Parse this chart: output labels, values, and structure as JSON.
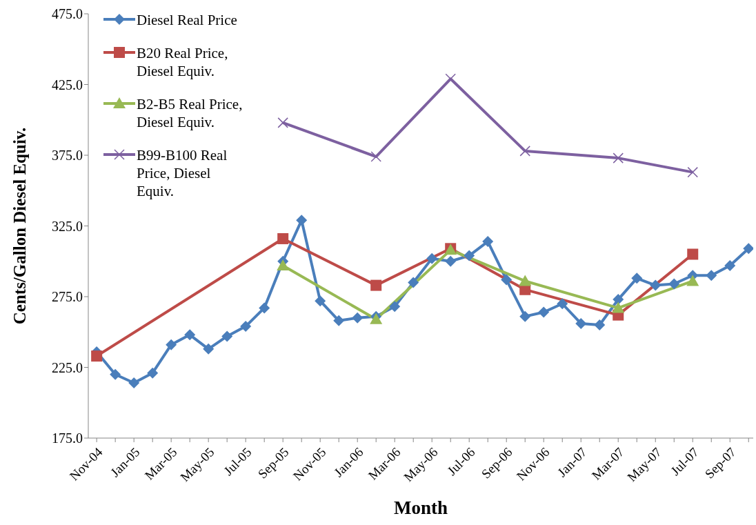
{
  "chart_data": {
    "type": "line",
    "xlabel": "Month",
    "ylabel": "Cents/Gallon Diesel Equiv.",
    "categories": [
      "Nov-04",
      null,
      "Jan-05",
      null,
      "Mar-05",
      null,
      "May-05",
      null,
      "Jul-05",
      null,
      "Sep-05",
      null,
      "Nov-05",
      null,
      "Jan-06",
      null,
      "Mar-06",
      null,
      "May-06",
      null,
      "Jul-06",
      null,
      "Sep-06",
      null,
      "Nov-06",
      null,
      "Jan-07",
      null,
      "Mar-07",
      null,
      "May-07",
      null,
      "Jul-07",
      null,
      "Sep-07",
      null
    ],
    "ylim": [
      175,
      475
    ],
    "yticks": [
      {
        "value": 175,
        "label": "175.0"
      },
      {
        "value": 225,
        "label": "225.0"
      },
      {
        "value": 275,
        "label": "275.0"
      },
      {
        "value": 325,
        "label": "325.0"
      },
      {
        "value": 375,
        "label": "375.0"
      },
      {
        "value": 425,
        "label": "425.0"
      },
      {
        "value": 475,
        "label": "475.0"
      }
    ],
    "legend": "top left",
    "series": [
      {
        "name": "Diesel Real Price",
        "color": "#4a7ebb",
        "marker": "diamond",
        "values": [
          236,
          220,
          214,
          221,
          241,
          248,
          238,
          247,
          254,
          267,
          300,
          329,
          272,
          258,
          260,
          261,
          268,
          285,
          302,
          300,
          304,
          314,
          287,
          261,
          264,
          270,
          256,
          255,
          273,
          288,
          283,
          284,
          290,
          290,
          297,
          309
        ]
      },
      {
        "name": "B20 Real Price, Diesel Equiv.",
        "color": "#be4b48",
        "marker": "square",
        "values": [
          233,
          null,
          null,
          null,
          null,
          null,
          null,
          null,
          null,
          null,
          316,
          null,
          null,
          null,
          null,
          283,
          null,
          null,
          null,
          309,
          null,
          null,
          null,
          280,
          null,
          null,
          null,
          null,
          262,
          null,
          null,
          null,
          305,
          null,
          null,
          null
        ]
      },
      {
        "name": "B2-B5 Real Price, Diesel Equiv.",
        "color": "#98b954",
        "marker": "triangle",
        "values": [
          null,
          null,
          null,
          null,
          null,
          null,
          null,
          null,
          null,
          null,
          297,
          null,
          null,
          null,
          null,
          259,
          null,
          null,
          null,
          308,
          null,
          null,
          null,
          286,
          null,
          null,
          null,
          null,
          267,
          null,
          null,
          null,
          286,
          null,
          null,
          null
        ]
      },
      {
        "name": "B99-B100 Real Price, Diesel Equiv.",
        "color": "#7d60a0",
        "marker": "cross",
        "values": [
          null,
          null,
          null,
          null,
          null,
          null,
          null,
          null,
          null,
          null,
          398,
          null,
          null,
          null,
          null,
          374,
          null,
          null,
          null,
          429,
          null,
          null,
          null,
          378,
          null,
          null,
          null,
          null,
          373,
          null,
          null,
          null,
          363,
          null,
          null,
          null
        ]
      }
    ]
  }
}
